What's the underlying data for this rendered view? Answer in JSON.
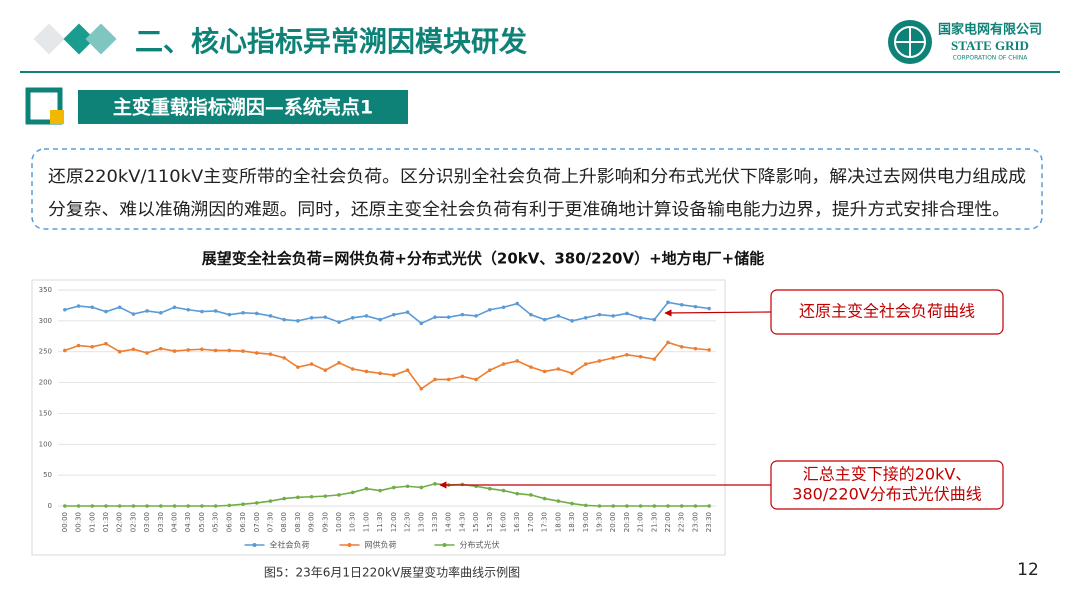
{
  "header": {
    "title": "二、核心指标异常溯因模块研发",
    "logo_cn": "国家电网有限公司",
    "logo_en": "STATE GRID",
    "logo_sub": "CORPORATION OF CHINA"
  },
  "section": {
    "title": "主变重载指标溯因—系统亮点1"
  },
  "paragraph": {
    "lines": [
      "还原220kV/110kV主变所带的全社会负荷。区分识别全社会负荷上升影响和分布式光伏下降影响，解决过去网供电力组成成",
      "分复杂、难以准确溯因的难题。同时，还原主变全社会负荷有利于更准确地计算设备输电能力边界，提升方式安排合理性。"
    ]
  },
  "chart_data": {
    "type": "line",
    "title": "展望变全社会负荷=网供负荷+分布式光伏（20kV、380/220V）+地方电厂+储能",
    "categories": [
      "00:00",
      "00:30",
      "01:00",
      "01:30",
      "02:00",
      "02:30",
      "03:00",
      "03:30",
      "04:00",
      "04:30",
      "05:00",
      "05:30",
      "06:00",
      "06:30",
      "07:00",
      "07:30",
      "08:00",
      "08:30",
      "09:00",
      "09:30",
      "10:00",
      "10:30",
      "11:00",
      "11:30",
      "12:00",
      "12:30",
      "13:00",
      "13:30",
      "14:00",
      "14:30",
      "15:00",
      "15:30",
      "16:00",
      "16:30",
      "17:00",
      "17:30",
      "18:00",
      "18:30",
      "19:00",
      "19:30",
      "20:00",
      "20:30",
      "21:00",
      "21:30",
      "22:00",
      "22:30",
      "23:00",
      "23:30"
    ],
    "series": [
      {
        "name": "全社会负荷",
        "color": "#5b9bd5",
        "values": [
          318,
          324,
          322,
          315,
          322,
          311,
          316,
          313,
          322,
          318,
          315,
          316,
          310,
          313,
          312,
          308,
          302,
          300,
          305,
          306,
          298,
          305,
          308,
          302,
          310,
          314,
          296,
          306,
          306,
          310,
          308,
          318,
          322,
          328,
          310,
          302,
          308,
          300,
          305,
          310,
          308,
          312,
          305,
          302,
          330,
          326,
          323,
          320
        ]
      },
      {
        "name": "网供负荷",
        "color": "#ed7d31",
        "values": [
          252,
          260,
          258,
          263,
          250,
          254,
          248,
          255,
          251,
          253,
          254,
          252,
          252,
          251,
          248,
          246,
          240,
          225,
          230,
          220,
          232,
          222,
          218,
          215,
          212,
          220,
          190,
          205,
          205,
          210,
          205,
          220,
          230,
          235,
          225,
          218,
          222,
          215,
          230,
          235,
          240,
          245,
          242,
          238,
          265,
          258,
          255,
          253
        ]
      },
      {
        "name": "分布式光伏",
        "color": "#70ad47",
        "values": [
          0,
          0,
          0,
          0,
          0,
          0,
          0,
          0,
          0,
          0,
          0,
          0,
          1,
          3,
          5,
          8,
          12,
          14,
          15,
          16,
          18,
          22,
          28,
          25,
          30,
          32,
          30,
          36,
          34,
          35,
          32,
          28,
          25,
          20,
          18,
          12,
          8,
          4,
          1,
          0,
          0,
          0,
          0,
          0,
          0,
          0,
          0,
          0
        ]
      }
    ],
    "ylim": [
      0,
      350
    ],
    "yticks": [
      0,
      50,
      100,
      150,
      200,
      250,
      300,
      350
    ],
    "grid": true,
    "legend": "bottom",
    "annotations": [
      {
        "lines": [
          "还原主变全社会负荷曲线"
        ]
      },
      {
        "lines": [
          "汇总主变下接的20kV、",
          "380/220V分布式光伏曲线"
        ]
      }
    ],
    "caption": "图5：23年6月1日220kV展望变功率曲线示例图"
  },
  "page_number": "12"
}
